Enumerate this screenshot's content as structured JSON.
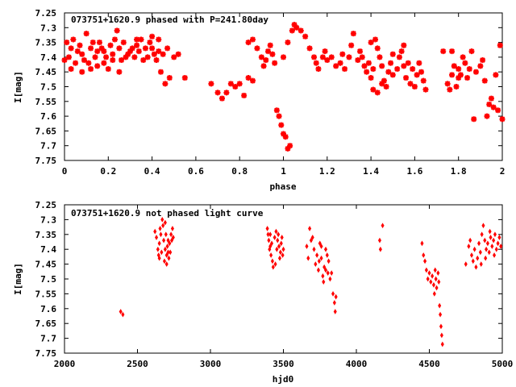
{
  "colors": {
    "marker": "#ff0000",
    "axis": "#000000",
    "background": "#ffffff"
  },
  "chart_data": [
    {
      "type": "scatter",
      "title": "073751+1620.9 phased with P=241.80day",
      "xlabel": "phase",
      "ylabel": "I[mag]",
      "xlim": [
        0,
        2
      ],
      "ylim": [
        7.25,
        7.75
      ],
      "y_inverted": true,
      "x_ticks": [
        0,
        0.2,
        0.4,
        0.6,
        0.8,
        1,
        1.2,
        1.4,
        1.6,
        1.8,
        2
      ],
      "x_tick_labels": [
        "0",
        "0.2",
        "0.4",
        "0.6",
        "0.8",
        "1",
        "1.2",
        "1.4",
        "1.6",
        "1.8",
        "2"
      ],
      "y_ticks": [
        7.25,
        7.3,
        7.35,
        7.4,
        7.45,
        7.5,
        7.55,
        7.6,
        7.65,
        7.7,
        7.75
      ],
      "y_tick_labels": [
        "7.25",
        "7.3",
        "7.35",
        "7.4",
        "7.45",
        "7.5",
        "7.55",
        "7.6",
        "7.65",
        "7.7",
        "7.75"
      ],
      "grid": false,
      "marker": "star",
      "points": [
        [
          0.0,
          7.41
        ],
        [
          0.01,
          7.35
        ],
        [
          0.02,
          7.4
        ],
        [
          0.03,
          7.37
        ],
        [
          0.04,
          7.34
        ],
        [
          0.05,
          7.42
        ],
        [
          0.06,
          7.38
        ],
        [
          0.07,
          7.36
        ],
        [
          0.08,
          7.39
        ],
        [
          0.09,
          7.41
        ],
        [
          0.1,
          7.32
        ],
        [
          0.11,
          7.42
        ],
        [
          0.12,
          7.37
        ],
        [
          0.13,
          7.35
        ],
        [
          0.14,
          7.4
        ],
        [
          0.15,
          7.43
        ],
        [
          0.16,
          7.35
        ],
        [
          0.17,
          7.37
        ],
        [
          0.18,
          7.42
        ],
        [
          0.19,
          7.4
        ],
        [
          0.2,
          7.44
        ],
        [
          0.21,
          7.36
        ],
        [
          0.22,
          7.39
        ],
        [
          0.23,
          7.34
        ],
        [
          0.24,
          7.31
        ],
        [
          0.25,
          7.37
        ],
        [
          0.26,
          7.41
        ],
        [
          0.27,
          7.35
        ],
        [
          0.28,
          7.4
        ],
        [
          0.29,
          7.39
        ],
        [
          0.3,
          7.38
        ],
        [
          0.31,
          7.37
        ],
        [
          0.32,
          7.4
        ],
        [
          0.33,
          7.36
        ],
        [
          0.34,
          7.38
        ],
        [
          0.35,
          7.34
        ],
        [
          0.36,
          7.41
        ],
        [
          0.37,
          7.37
        ],
        [
          0.38,
          7.4
        ],
        [
          0.39,
          7.35
        ],
        [
          0.4,
          7.37
        ],
        [
          0.41,
          7.39
        ],
        [
          0.42,
          7.41
        ],
        [
          0.43,
          7.38
        ],
        [
          0.44,
          7.45
        ],
        [
          0.45,
          7.39
        ],
        [
          0.46,
          7.49
        ],
        [
          0.47,
          7.37
        ],
        [
          0.48,
          7.47
        ],
        [
          0.5,
          7.4
        ],
        [
          0.12,
          7.44
        ],
        [
          0.18,
          7.38
        ],
        [
          0.25,
          7.45
        ],
        [
          0.33,
          7.34
        ],
        [
          0.4,
          7.33
        ],
        [
          0.43,
          7.34
        ],
        [
          0.03,
          7.44
        ],
        [
          0.08,
          7.45
        ],
        [
          0.15,
          7.38
        ],
        [
          0.22,
          7.41
        ],
        [
          0.52,
          7.39
        ],
        [
          0.55,
          7.47
        ],
        [
          0.67,
          7.49
        ],
        [
          0.7,
          7.52
        ],
        [
          0.72,
          7.54
        ],
        [
          0.74,
          7.52
        ],
        [
          0.76,
          7.49
        ],
        [
          0.78,
          7.5
        ],
        [
          0.8,
          7.49
        ],
        [
          0.82,
          7.53
        ],
        [
          0.84,
          7.47
        ],
        [
          0.86,
          7.48
        ],
        [
          0.84,
          7.35
        ],
        [
          0.86,
          7.34
        ],
        [
          0.88,
          7.37
        ],
        [
          0.9,
          7.4
        ],
        [
          0.91,
          7.43
        ],
        [
          0.92,
          7.41
        ],
        [
          0.93,
          7.38
        ],
        [
          0.94,
          7.36
        ],
        [
          0.95,
          7.39
        ],
        [
          0.96,
          7.42
        ],
        [
          0.97,
          7.58
        ],
        [
          0.98,
          7.6
        ],
        [
          0.99,
          7.63
        ],
        [
          1.0,
          7.66
        ],
        [
          1.01,
          7.67
        ],
        [
          1.02,
          7.71
        ],
        [
          1.03,
          7.7
        ],
        [
          1.0,
          7.4
        ],
        [
          1.02,
          7.35
        ],
        [
          1.04,
          7.31
        ],
        [
          1.05,
          7.29
        ],
        [
          1.06,
          7.3
        ],
        [
          1.08,
          7.31
        ],
        [
          1.1,
          7.33
        ],
        [
          1.12,
          7.37
        ],
        [
          1.14,
          7.4
        ],
        [
          1.15,
          7.42
        ],
        [
          1.16,
          7.44
        ],
        [
          1.18,
          7.4
        ],
        [
          1.19,
          7.38
        ],
        [
          1.2,
          7.41
        ],
        [
          1.22,
          7.4
        ],
        [
          1.24,
          7.43
        ],
        [
          1.26,
          7.42
        ],
        [
          1.27,
          7.39
        ],
        [
          1.28,
          7.44
        ],
        [
          1.3,
          7.4
        ],
        [
          1.31,
          7.36
        ],
        [
          1.32,
          7.32
        ],
        [
          1.34,
          7.41
        ],
        [
          1.35,
          7.38
        ],
        [
          1.36,
          7.4
        ],
        [
          1.37,
          7.43
        ],
        [
          1.38,
          7.45
        ],
        [
          1.39,
          7.42
        ],
        [
          1.4,
          7.47
        ],
        [
          1.41,
          7.44
        ],
        [
          1.4,
          7.35
        ],
        [
          1.42,
          7.34
        ],
        [
          1.43,
          7.37
        ],
        [
          1.44,
          7.4
        ],
        [
          1.45,
          7.43
        ],
        [
          1.46,
          7.48
        ],
        [
          1.47,
          7.5
        ],
        [
          1.48,
          7.45
        ],
        [
          1.49,
          7.42
        ],
        [
          1.5,
          7.46
        ],
        [
          1.41,
          7.51
        ],
        [
          1.43,
          7.52
        ],
        [
          1.45,
          7.49
        ],
        [
          1.52,
          7.44
        ],
        [
          1.53,
          7.4
        ],
        [
          1.54,
          7.38
        ],
        [
          1.55,
          7.43
        ],
        [
          1.56,
          7.47
        ],
        [
          1.57,
          7.42
        ],
        [
          1.58,
          7.49
        ],
        [
          1.59,
          7.44
        ],
        [
          1.6,
          7.5
        ],
        [
          1.61,
          7.46
        ],
        [
          1.62,
          7.42
        ],
        [
          1.63,
          7.45
        ],
        [
          1.64,
          7.48
        ],
        [
          1.65,
          7.51
        ],
        [
          1.5,
          7.39
        ],
        [
          1.55,
          7.36
        ],
        [
          1.73,
          7.38
        ],
        [
          1.75,
          7.49
        ],
        [
          1.76,
          7.51
        ],
        [
          1.77,
          7.46
        ],
        [
          1.78,
          7.43
        ],
        [
          1.79,
          7.5
        ],
        [
          1.8,
          7.44
        ],
        [
          1.81,
          7.46
        ],
        [
          1.82,
          7.4
        ],
        [
          1.83,
          7.42
        ],
        [
          1.84,
          7.47
        ],
        [
          1.85,
          7.44
        ],
        [
          1.86,
          7.38
        ],
        [
          1.87,
          7.61
        ],
        [
          1.88,
          7.45
        ],
        [
          1.9,
          7.43
        ],
        [
          1.91,
          7.41
        ],
        [
          1.92,
          7.48
        ],
        [
          1.93,
          7.6
        ],
        [
          1.94,
          7.56
        ],
        [
          1.95,
          7.54
        ],
        [
          1.96,
          7.57
        ],
        [
          1.97,
          7.46
        ],
        [
          1.98,
          7.58
        ],
        [
          1.99,
          7.36
        ],
        [
          2.0,
          7.61
        ],
        [
          1.77,
          7.38
        ],
        [
          1.8,
          7.47
        ]
      ]
    },
    {
      "type": "scatter",
      "title": "073751+1620.9 not phased light curve",
      "xlabel": "hjd0",
      "ylabel": "I[mag]",
      "xlim": [
        2000,
        5000
      ],
      "ylim": [
        7.25,
        7.75
      ],
      "y_inverted": true,
      "x_ticks": [
        2000,
        2500,
        3000,
        3500,
        4000,
        4500,
        5000
      ],
      "x_tick_labels": [
        "2000",
        "2500",
        "3000",
        "3500",
        "4000",
        "4500",
        "5000"
      ],
      "y_ticks": [
        7.25,
        7.3,
        7.35,
        7.4,
        7.45,
        7.5,
        7.55,
        7.6,
        7.65,
        7.7,
        7.75
      ],
      "y_tick_labels": [
        "7.25",
        "7.3",
        "7.35",
        "7.4",
        "7.45",
        "7.5",
        "7.55",
        "7.6",
        "7.65",
        "7.7",
        "7.75"
      ],
      "grid": false,
      "marker": "diamond",
      "points": [
        [
          2385,
          7.61
        ],
        [
          2400,
          7.62
        ],
        [
          2620,
          7.34
        ],
        [
          2630,
          7.36
        ],
        [
          2640,
          7.4
        ],
        [
          2645,
          7.42
        ],
        [
          2650,
          7.38
        ],
        [
          2655,
          7.33
        ],
        [
          2660,
          7.35
        ],
        [
          2665,
          7.41
        ],
        [
          2670,
          7.3
        ],
        [
          2675,
          7.32
        ],
        [
          2680,
          7.37
        ],
        [
          2685,
          7.44
        ],
        [
          2690,
          7.4
        ],
        [
          2695,
          7.35
        ],
        [
          2700,
          7.42
        ],
        [
          2705,
          7.39
        ],
        [
          2710,
          7.41
        ],
        [
          2715,
          7.43
        ],
        [
          2720,
          7.38
        ],
        [
          2725,
          7.41
        ],
        [
          2730,
          7.35
        ],
        [
          2735,
          7.37
        ],
        [
          2740,
          7.33
        ],
        [
          2745,
          7.36
        ],
        [
          2690,
          7.31
        ],
        [
          2700,
          7.45
        ],
        [
          2710,
          7.37
        ],
        [
          2650,
          7.43
        ],
        [
          3390,
          7.33
        ],
        [
          3395,
          7.35
        ],
        [
          3400,
          7.37
        ],
        [
          3405,
          7.4
        ],
        [
          3410,
          7.39
        ],
        [
          3415,
          7.42
        ],
        [
          3420,
          7.38
        ],
        [
          3425,
          7.44
        ],
        [
          3430,
          7.46
        ],
        [
          3440,
          7.36
        ],
        [
          3450,
          7.34
        ],
        [
          3455,
          7.4
        ],
        [
          3460,
          7.37
        ],
        [
          3465,
          7.35
        ],
        [
          3470,
          7.39
        ],
        [
          3475,
          7.43
        ],
        [
          3480,
          7.41
        ],
        [
          3485,
          7.38
        ],
        [
          3490,
          7.36
        ],
        [
          3495,
          7.42
        ],
        [
          3500,
          7.4
        ],
        [
          3445,
          7.45
        ],
        [
          3410,
          7.35
        ],
        [
          3660,
          7.39
        ],
        [
          3670,
          7.43
        ],
        [
          3680,
          7.33
        ],
        [
          3690,
          7.37
        ],
        [
          3700,
          7.36
        ],
        [
          3710,
          7.4
        ],
        [
          3720,
          7.45
        ],
        [
          3730,
          7.42
        ],
        [
          3740,
          7.47
        ],
        [
          3750,
          7.38
        ],
        [
          3760,
          7.43
        ],
        [
          3770,
          7.49
        ],
        [
          3780,
          7.46
        ],
        [
          3790,
          7.4
        ],
        [
          3800,
          7.42
        ],
        [
          3810,
          7.44
        ],
        [
          3820,
          7.5
        ],
        [
          3830,
          7.48
        ],
        [
          3840,
          7.55
        ],
        [
          3850,
          7.58
        ],
        [
          3855,
          7.61
        ],
        [
          3860,
          7.56
        ],
        [
          3760,
          7.39
        ],
        [
          3775,
          7.51
        ],
        [
          3790,
          7.47
        ],
        [
          3745,
          7.44
        ],
        [
          3805,
          7.48
        ],
        [
          4160,
          7.37
        ],
        [
          4165,
          7.4
        ],
        [
          4180,
          7.32
        ],
        [
          4450,
          7.38
        ],
        [
          4460,
          7.42
        ],
        [
          4470,
          7.44
        ],
        [
          4480,
          7.47
        ],
        [
          4490,
          7.5
        ],
        [
          4500,
          7.48
        ],
        [
          4510,
          7.51
        ],
        [
          4520,
          7.49
        ],
        [
          4530,
          7.52
        ],
        [
          4535,
          7.55
        ],
        [
          4540,
          7.47
        ],
        [
          4545,
          7.5
        ],
        [
          4550,
          7.53
        ],
        [
          4560,
          7.48
        ],
        [
          4565,
          7.51
        ],
        [
          4570,
          7.59
        ],
        [
          4575,
          7.62
        ],
        [
          4580,
          7.66
        ],
        [
          4585,
          7.69
        ],
        [
          4590,
          7.72
        ],
        [
          4750,
          7.45
        ],
        [
          4770,
          7.39
        ],
        [
          4780,
          7.37
        ],
        [
          4790,
          7.42
        ],
        [
          4800,
          7.44
        ],
        [
          4810,
          7.4
        ],
        [
          4820,
          7.46
        ],
        [
          4830,
          7.43
        ],
        [
          4840,
          7.38
        ],
        [
          4850,
          7.41
        ],
        [
          4860,
          7.35
        ],
        [
          4870,
          7.32
        ],
        [
          4880,
          7.37
        ],
        [
          4890,
          7.4
        ],
        [
          4900,
          7.38
        ],
        [
          4910,
          7.41
        ],
        [
          4920,
          7.36
        ],
        [
          4930,
          7.39
        ],
        [
          4940,
          7.37
        ],
        [
          4950,
          7.35
        ],
        [
          4960,
          7.4
        ],
        [
          4970,
          7.38
        ],
        [
          4980,
          7.36
        ],
        [
          4990,
          7.39
        ],
        [
          4855,
          7.45
        ],
        [
          4885,
          7.43
        ],
        [
          4915,
          7.34
        ],
        [
          4945,
          7.42
        ]
      ]
    }
  ]
}
